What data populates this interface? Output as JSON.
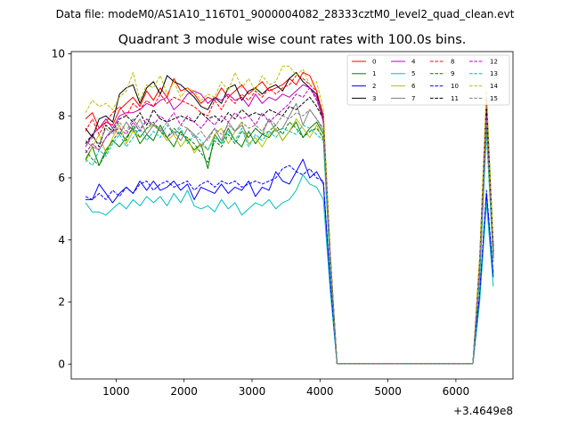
{
  "suptitle": "Data file: modeM0/AS1A10_116T01_9000004082_28333cztM0_level2_quad_clean.evt",
  "chart_data": {
    "type": "line",
    "title": "Quadrant 3 module wise count rates with 100.0s bins.",
    "xlabel": "",
    "ylabel": "",
    "x_offset_label": "+3.4649e8",
    "xlim": [
      340,
      6840
    ],
    "ylim": [
      -0.48,
      10.07
    ],
    "xticks": [
      1000,
      2000,
      3000,
      4000,
      5000,
      6000
    ],
    "yticks": [
      0,
      2,
      4,
      6,
      8,
      10
    ],
    "legend_placement": "top-right",
    "legend_ncol": 4,
    "x": [
      550,
      650,
      750,
      850,
      950,
      1050,
      1150,
      1250,
      1350,
      1450,
      1550,
      1650,
      1750,
      1850,
      1950,
      2050,
      2150,
      2250,
      2350,
      2450,
      2550,
      2650,
      2750,
      2850,
      2950,
      3050,
      3150,
      3250,
      3350,
      3450,
      3550,
      3650,
      3750,
      3850,
      3950,
      4050,
      4150,
      4250,
      4350,
      4450,
      4550,
      4650,
      4750,
      4850,
      4950,
      5050,
      5150,
      5250,
      5350,
      5450,
      5550,
      5650,
      5750,
      5850,
      5950,
      6050,
      6150,
      6250,
      6350,
      6450,
      6550
    ],
    "series": [
      {
        "name": "0",
        "color": "#ff0000",
        "dash": "solid",
        "values": [
          7.9,
          8.1,
          7.6,
          7.8,
          7.7,
          8.2,
          8.4,
          8.6,
          8.3,
          8.8,
          8.5,
          8.9,
          8.6,
          9.2,
          8.8,
          8.9,
          8.7,
          8.4,
          8.6,
          8.5,
          8.9,
          8.6,
          8.8,
          9.0,
          8.7,
          8.9,
          9.1,
          8.8,
          8.9,
          9.0,
          9.2,
          9.0,
          9.4,
          9.3,
          8.8,
          7.9,
          3.5,
          0.02,
          0.02,
          0.02,
          0.02,
          0.02,
          0.02,
          0.02,
          0.02,
          0.02,
          0.02,
          0.02,
          0.02,
          0.02,
          0.02,
          0.02,
          0.02,
          0.02,
          0.02,
          0.02,
          0.02,
          0.02,
          3.2,
          8.3,
          3.6
        ]
      },
      {
        "name": "1",
        "color": "#008000",
        "dash": "solid",
        "values": [
          6.6,
          7.0,
          6.4,
          6.9,
          7.2,
          7.0,
          7.3,
          7.6,
          7.1,
          7.4,
          7.2,
          7.7,
          7.3,
          7.0,
          7.5,
          7.2,
          6.9,
          7.1,
          6.3,
          7.4,
          7.1,
          7.6,
          7.2,
          7.0,
          7.5,
          7.1,
          7.4,
          7.3,
          7.6,
          7.2,
          7.5,
          7.8,
          7.3,
          7.6,
          7.8,
          7.4,
          3.3,
          0.02,
          0.02,
          0.02,
          0.02,
          0.02,
          0.02,
          0.02,
          0.02,
          0.02,
          0.02,
          0.02,
          0.02,
          0.02,
          0.02,
          0.02,
          0.02,
          0.02,
          0.02,
          0.02,
          0.02,
          0.02,
          2.9,
          7.8,
          3.4
        ]
      },
      {
        "name": "2",
        "color": "#0000ff",
        "dash": "solid",
        "values": [
          5.3,
          5.3,
          5.8,
          5.5,
          5.2,
          5.5,
          5.7,
          5.5,
          5.9,
          5.6,
          5.9,
          5.6,
          5.7,
          5.9,
          5.6,
          5.8,
          5.3,
          5.7,
          5.6,
          5.5,
          5.8,
          5.5,
          5.7,
          5.6,
          5.9,
          5.4,
          5.7,
          5.6,
          6.2,
          5.9,
          5.8,
          6.2,
          6.6,
          6.0,
          6.2,
          5.8,
          2.6,
          0.02,
          0.02,
          0.02,
          0.02,
          0.02,
          0.02,
          0.02,
          0.02,
          0.02,
          0.02,
          0.02,
          0.02,
          0.02,
          0.02,
          0.02,
          0.02,
          0.02,
          0.02,
          0.02,
          0.02,
          0.02,
          2.2,
          5.5,
          2.8
        ]
      },
      {
        "name": "3",
        "color": "#000000",
        "dash": "solid",
        "values": [
          7.6,
          7.3,
          7.9,
          8.0,
          7.8,
          8.7,
          8.9,
          9.0,
          8.4,
          8.9,
          9.1,
          8.7,
          9.3,
          9.1,
          9.0,
          8.8,
          8.6,
          8.3,
          8.2,
          8.6,
          8.4,
          8.9,
          9.0,
          8.5,
          8.8,
          8.9,
          8.7,
          8.9,
          9.0,
          8.8,
          9.2,
          9.4,
          9.1,
          8.9,
          8.7,
          8.0,
          3.6,
          0.02,
          0.02,
          0.02,
          0.02,
          0.02,
          0.02,
          0.02,
          0.02,
          0.02,
          0.02,
          0.02,
          0.02,
          0.02,
          0.02,
          0.02,
          0.02,
          0.02,
          0.02,
          0.02,
          0.02,
          0.02,
          3.4,
          8.6,
          3.8
        ]
      },
      {
        "name": "4",
        "color": "#bf00bf",
        "dash": "solid",
        "values": [
          7.0,
          7.4,
          7.6,
          7.9,
          7.6,
          8.0,
          8.1,
          8.1,
          8.2,
          8.4,
          8.3,
          8.5,
          8.6,
          8.2,
          8.4,
          8.7,
          8.8,
          8.7,
          8.4,
          8.6,
          8.5,
          8.7,
          8.5,
          8.6,
          8.3,
          8.7,
          8.4,
          8.6,
          8.5,
          8.7,
          8.6,
          8.8,
          9.0,
          8.9,
          8.6,
          7.8,
          3.4,
          0.02,
          0.02,
          0.02,
          0.02,
          0.02,
          0.02,
          0.02,
          0.02,
          0.02,
          0.02,
          0.02,
          0.02,
          0.02,
          0.02,
          0.02,
          0.02,
          0.02,
          0.02,
          0.02,
          0.02,
          0.02,
          3.0,
          8.1,
          3.5
        ]
      },
      {
        "name": "5",
        "color": "#00bfbf",
        "dash": "solid",
        "values": [
          5.2,
          4.9,
          4.9,
          4.8,
          5.0,
          5.2,
          5.0,
          5.3,
          5.1,
          5.4,
          5.2,
          5.4,
          5.1,
          5.5,
          5.2,
          5.6,
          5.1,
          5.0,
          5.1,
          4.9,
          5.3,
          5.0,
          5.2,
          4.8,
          5.0,
          5.2,
          5.1,
          5.3,
          5.0,
          5.2,
          5.3,
          5.6,
          6.1,
          5.8,
          5.7,
          5.3,
          2.4,
          0.02,
          0.02,
          0.02,
          0.02,
          0.02,
          0.02,
          0.02,
          0.02,
          0.02,
          0.02,
          0.02,
          0.02,
          0.02,
          0.02,
          0.02,
          0.02,
          0.02,
          0.02,
          0.02,
          0.02,
          0.02,
          2.0,
          5.2,
          2.5
        ]
      },
      {
        "name": "6",
        "color": "#bfbf00",
        "dash": "solid",
        "values": [
          6.5,
          7.0,
          7.4,
          6.8,
          7.3,
          7.7,
          7.1,
          7.5,
          7.3,
          7.6,
          7.7,
          7.5,
          7.2,
          7.4,
          7.0,
          7.3,
          6.8,
          7.1,
          6.9,
          7.4,
          7.6,
          7.1,
          7.5,
          7.8,
          7.1,
          7.3,
          7.0,
          7.4,
          7.6,
          7.2,
          7.5,
          7.9,
          7.6,
          7.3,
          7.7,
          7.2,
          3.2,
          0.02,
          0.02,
          0.02,
          0.02,
          0.02,
          0.02,
          0.02,
          0.02,
          0.02,
          0.02,
          0.02,
          0.02,
          0.02,
          0.02,
          0.02,
          0.02,
          0.02,
          0.02,
          0.02,
          0.02,
          0.02,
          2.8,
          7.6,
          3.3
        ]
      },
      {
        "name": "7",
        "color": "#808080",
        "dash": "solid",
        "values": [
          7.2,
          7.0,
          6.9,
          7.3,
          7.6,
          7.4,
          7.8,
          7.5,
          7.9,
          7.4,
          7.7,
          7.6,
          7.3,
          7.5,
          7.2,
          7.6,
          7.4,
          7.0,
          7.3,
          7.6,
          7.2,
          7.8,
          7.5,
          7.7,
          7.3,
          7.6,
          7.4,
          7.9,
          7.5,
          7.6,
          8.0,
          8.4,
          7.7,
          8.2,
          7.9,
          7.5,
          3.4,
          0.02,
          0.02,
          0.02,
          0.02,
          0.02,
          0.02,
          0.02,
          0.02,
          0.02,
          0.02,
          0.02,
          0.02,
          0.02,
          0.02,
          0.02,
          0.02,
          0.02,
          0.02,
          0.02,
          0.02,
          0.02,
          3.0,
          8.0,
          3.5
        ]
      },
      {
        "name": "8",
        "color": "#ff0000",
        "dash": "dashed",
        "values": [
          7.5,
          7.9,
          7.4,
          7.8,
          8.1,
          8.3,
          8.0,
          8.4,
          8.2,
          8.5,
          8.3,
          8.7,
          8.4,
          8.6,
          8.5,
          8.4,
          8.3,
          8.1,
          8.0,
          8.5,
          8.2,
          8.6,
          8.4,
          8.7,
          8.5,
          8.8,
          8.6,
          8.9,
          8.7,
          8.9,
          9.0,
          9.3,
          9.2,
          9.0,
          8.8,
          8.0,
          3.6,
          0.02,
          0.02,
          0.02,
          0.02,
          0.02,
          0.02,
          0.02,
          0.02,
          0.02,
          0.02,
          0.02,
          0.02,
          0.02,
          0.02,
          0.02,
          0.02,
          0.02,
          0.02,
          0.02,
          0.02,
          0.02,
          3.4,
          8.5,
          3.7
        ]
      },
      {
        "name": "9",
        "color": "#008000",
        "dash": "dashed",
        "values": [
          6.9,
          6.6,
          6.4,
          6.8,
          7.2,
          7.5,
          7.2,
          7.7,
          7.3,
          7.6,
          7.8,
          7.5,
          7.3,
          7.6,
          7.4,
          7.3,
          7.1,
          6.8,
          6.5,
          7.2,
          7.0,
          7.4,
          7.1,
          7.5,
          7.3,
          7.6,
          7.4,
          7.5,
          7.7,
          7.4,
          7.8,
          7.6,
          7.3,
          7.5,
          7.6,
          7.3,
          3.3,
          0.02,
          0.02,
          0.02,
          0.02,
          0.02,
          0.02,
          0.02,
          0.02,
          0.02,
          0.02,
          0.02,
          0.02,
          0.02,
          0.02,
          0.02,
          0.02,
          0.02,
          0.02,
          0.02,
          0.02,
          0.02,
          2.9,
          7.6,
          3.4
        ]
      },
      {
        "name": "10",
        "color": "#0000ff",
        "dash": "dashed",
        "values": [
          5.4,
          5.3,
          5.5,
          5.3,
          5.6,
          5.4,
          5.7,
          5.5,
          5.8,
          5.9,
          5.6,
          5.8,
          5.9,
          5.7,
          5.8,
          5.9,
          5.6,
          5.8,
          5.9,
          5.7,
          5.9,
          5.8,
          5.9,
          5.7,
          5.8,
          5.9,
          5.8,
          5.9,
          6.0,
          6.3,
          6.4,
          6.2,
          6.1,
          6.3,
          6.0,
          5.9,
          2.7,
          0.02,
          0.02,
          0.02,
          0.02,
          0.02,
          0.02,
          0.02,
          0.02,
          0.02,
          0.02,
          0.02,
          0.02,
          0.02,
          0.02,
          0.02,
          0.02,
          0.02,
          0.02,
          0.02,
          0.02,
          0.02,
          2.3,
          5.6,
          2.9
        ]
      },
      {
        "name": "11",
        "color": "#000000",
        "dash": "dashed",
        "values": [
          7.1,
          7.4,
          7.0,
          7.7,
          7.5,
          7.9,
          8.0,
          7.8,
          8.1,
          7.7,
          8.2,
          7.9,
          7.8,
          7.9,
          8.0,
          7.9,
          7.8,
          8.1,
          7.9,
          8.0,
          7.8,
          8.1,
          7.9,
          8.2,
          8.0,
          8.1,
          8.0,
          8.2,
          8.1,
          8.0,
          8.3,
          8.2,
          8.4,
          8.6,
          8.3,
          7.9,
          3.5,
          0.02,
          0.02,
          0.02,
          0.02,
          0.02,
          0.02,
          0.02,
          0.02,
          0.02,
          0.02,
          0.02,
          0.02,
          0.02,
          0.02,
          0.02,
          0.02,
          0.02,
          0.02,
          0.02,
          0.02,
          0.02,
          3.2,
          8.2,
          3.6
        ]
      },
      {
        "name": "12",
        "color": "#bf00bf",
        "dash": "dashed",
        "values": [
          6.8,
          7.1,
          6.9,
          7.3,
          7.5,
          7.6,
          7.4,
          7.8,
          7.5,
          7.9,
          7.7,
          8.0,
          7.8,
          8.1,
          7.7,
          8.0,
          7.8,
          7.6,
          7.9,
          7.7,
          8.0,
          7.8,
          8.1,
          7.9,
          8.0,
          7.7,
          8.1,
          7.8,
          8.0,
          8.2,
          8.4,
          8.7,
          8.6,
          8.9,
          8.5,
          7.9,
          3.4,
          0.02,
          0.02,
          0.02,
          0.02,
          0.02,
          0.02,
          0.02,
          0.02,
          0.02,
          0.02,
          0.02,
          0.02,
          0.02,
          0.02,
          0.02,
          0.02,
          0.02,
          0.02,
          0.02,
          0.02,
          0.02,
          3.1,
          8.0,
          3.5
        ]
      },
      {
        "name": "13",
        "color": "#00bfbf",
        "dash": "dashed",
        "values": [
          6.6,
          6.4,
          6.9,
          6.7,
          7.1,
          7.4,
          7.0,
          7.3,
          7.6,
          7.2,
          7.5,
          7.3,
          7.7,
          7.4,
          7.6,
          7.1,
          7.4,
          7.2,
          6.9,
          7.3,
          7.1,
          7.5,
          7.2,
          7.6,
          7.0,
          7.4,
          7.2,
          7.5,
          7.3,
          7.6,
          7.5,
          7.4,
          7.7,
          7.6,
          7.4,
          7.2,
          3.2,
          0.02,
          0.02,
          0.02,
          0.02,
          0.02,
          0.02,
          0.02,
          0.02,
          0.02,
          0.02,
          0.02,
          0.02,
          0.02,
          0.02,
          0.02,
          0.02,
          0.02,
          0.02,
          0.02,
          0.02,
          0.02,
          2.8,
          7.4,
          3.3
        ]
      },
      {
        "name": "14",
        "color": "#bfbf00",
        "dash": "dashed",
        "values": [
          8.1,
          8.5,
          8.3,
          8.4,
          8.2,
          8.6,
          8.8,
          9.4,
          8.5,
          9.0,
          8.9,
          9.3,
          8.7,
          9.1,
          8.6,
          8.9,
          8.8,
          8.5,
          8.7,
          8.6,
          9.1,
          8.8,
          9.4,
          8.9,
          9.2,
          8.8,
          9.3,
          9.0,
          9.1,
          9.6,
          9.6,
          9.3,
          9.5,
          9.0,
          9.1,
          8.2,
          3.7,
          0.02,
          0.02,
          0.02,
          0.02,
          0.02,
          0.02,
          0.02,
          0.02,
          0.02,
          0.02,
          0.02,
          0.02,
          0.02,
          0.02,
          0.02,
          0.02,
          0.02,
          0.02,
          0.02,
          0.02,
          0.02,
          3.5,
          8.8,
          3.9
        ]
      },
      {
        "name": "15",
        "color": "#808080",
        "dash": "dashed",
        "values": [
          7.0,
          7.3,
          7.1,
          7.6,
          7.4,
          7.8,
          7.5,
          7.9,
          7.6,
          7.8,
          7.7,
          7.5,
          7.8,
          7.4,
          7.7,
          7.6,
          7.3,
          7.5,
          7.2,
          7.6,
          7.4,
          7.7,
          7.5,
          7.8,
          7.6,
          7.7,
          7.5,
          7.9,
          7.7,
          8.0,
          7.9,
          8.1,
          8.0,
          8.2,
          7.9,
          7.6,
          3.4,
          0.02,
          0.02,
          0.02,
          0.02,
          0.02,
          0.02,
          0.02,
          0.02,
          0.02,
          0.02,
          0.02,
          0.02,
          0.02,
          0.02,
          0.02,
          0.02,
          0.02,
          0.02,
          0.02,
          0.02,
          0.02,
          3.0,
          7.9,
          3.4
        ]
      }
    ]
  }
}
